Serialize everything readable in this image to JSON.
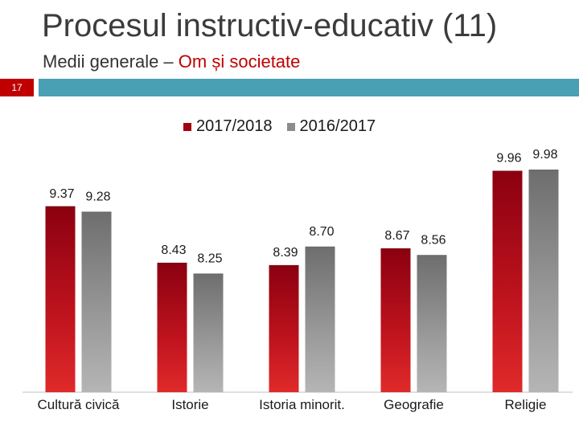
{
  "header": {
    "title": "Procesul instructiv-educativ (11)",
    "subtitle_prefix": "Medii generale – ",
    "subtitle_accent": "Om și societate",
    "slide_number": "17"
  },
  "colors": {
    "series_2017_2018": "#a00010",
    "series_2016_2017": "#8c8c8c",
    "header_bar": "#4a9fb5",
    "slide_number_box": "#c00000"
  },
  "chart_data": {
    "type": "bar",
    "title": "",
    "xlabel": "",
    "ylabel": "",
    "categories": [
      "Cultură civică",
      "Istorie",
      "Istoria minorit.",
      "Geografie",
      "Religie"
    ],
    "series": [
      {
        "name": "2017/2018",
        "values": [
          9.37,
          8.43,
          8.39,
          8.67,
          9.96
        ],
        "labels": [
          "9.37",
          "8.43",
          "8.39",
          "8.67",
          "9.96"
        ]
      },
      {
        "name": "2016/2017",
        "values": [
          9.28,
          8.25,
          8.7,
          8.56,
          9.98
        ],
        "labels": [
          "9.28",
          "8.25",
          "8.70",
          "8.56",
          "9.98"
        ]
      }
    ],
    "ylim": [
      6.28,
      10.05
    ],
    "legend": "top-center",
    "grid": false
  }
}
